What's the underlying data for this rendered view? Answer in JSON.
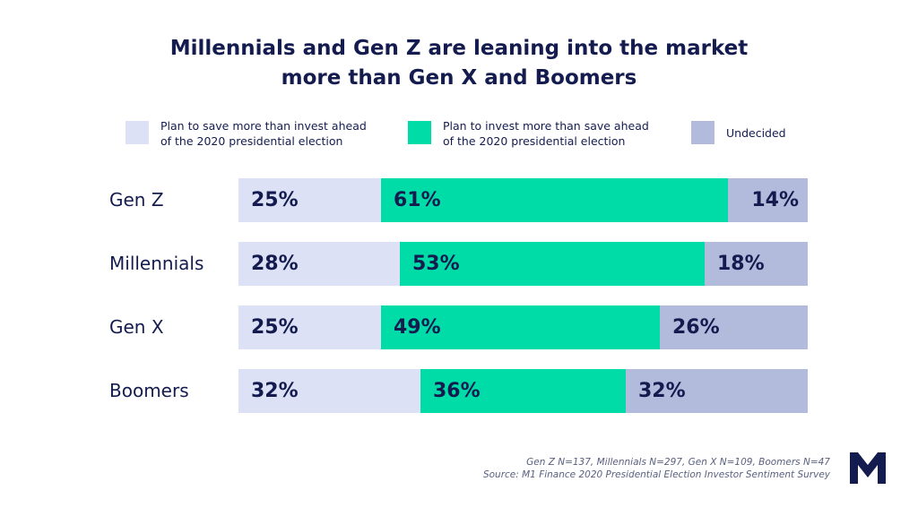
{
  "title": {
    "line1": "Millennials and Gen Z are leaning into the market",
    "line2": "more than Gen X and Boomers"
  },
  "legend": [
    {
      "line1": "Plan to save more than invest ahead",
      "line2": "of the 2020 presidential election",
      "color": "#dde1f6"
    },
    {
      "line1": "Plan to invest more than save ahead",
      "line2": "of the 2020 presidential election",
      "color": "#00dca8"
    },
    {
      "line1": "Undecided",
      "line2": "",
      "color": "#b3bbdc"
    }
  ],
  "chart_data": {
    "type": "bar",
    "orientation": "horizontal",
    "stacked": true,
    "normalized_to": 100,
    "categories": [
      "Gen Z",
      "Millennials",
      "Gen X",
      "Boomers"
    ],
    "series": [
      {
        "name": "Plan to save more than invest ahead of the 2020 presidential election",
        "color": "#dde1f6",
        "values": [
          25,
          28,
          25,
          32
        ],
        "labels": [
          "25%",
          "28%",
          "25%",
          "32%"
        ]
      },
      {
        "name": "Plan to invest more than save ahead of the 2020 presidential election",
        "color": "#00dca8",
        "values": [
          61,
          53,
          49,
          36
        ],
        "labels": [
          "61%",
          "53%",
          "49%",
          "36%"
        ]
      },
      {
        "name": "Undecided",
        "color": "#b3bbdc",
        "values": [
          14,
          18,
          26,
          32
        ],
        "labels": [
          "14%",
          "18%",
          "26%",
          "32%"
        ]
      }
    ],
    "legend_position": "top",
    "grid": false
  },
  "footnotes": {
    "sample": "Gen Z N=137, Millennials N=297, Gen X N=109, Boomers N=47",
    "source": "Source: M1 Finance 2020 Presidential Election Investor Sentiment Survey"
  },
  "logo": {
    "name": "m1-logo-icon",
    "color": "#141c4f"
  }
}
